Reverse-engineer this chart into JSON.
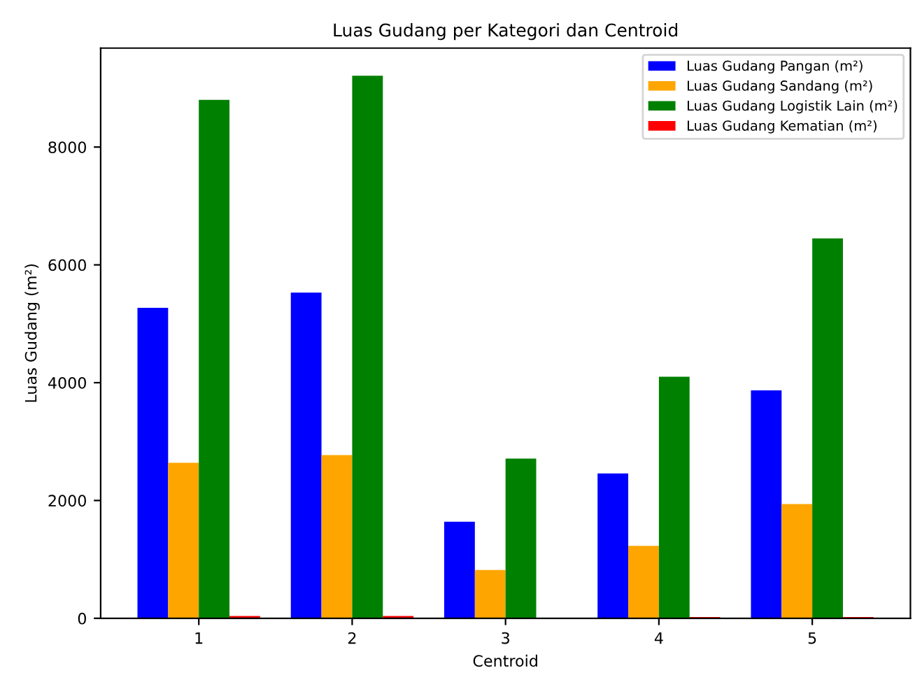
{
  "chart_data": {
    "type": "bar",
    "title": "Luas Gudang per Kategori dan Centroid",
    "xlabel": "Centroid",
    "ylabel": "Luas Gudang (m²)",
    "categories": [
      "1",
      "2",
      "3",
      "4",
      "5"
    ],
    "series": [
      {
        "name": "Luas Gudang Pangan (m²)",
        "color": "#0000ff",
        "values": [
          5270,
          5530,
          1640,
          2460,
          3870
        ]
      },
      {
        "name": "Luas Gudang Sandang (m²)",
        "color": "#ffa500",
        "values": [
          2640,
          2770,
          820,
          1230,
          1940
        ]
      },
      {
        "name": "Luas Gudang Logistik Lain (m²)",
        "color": "#008000",
        "values": [
          8800,
          9210,
          2710,
          4100,
          6450
        ]
      },
      {
        "name": "Luas Gudang Kematian (m²)",
        "color": "#ff0000",
        "values": [
          40,
          40,
          0,
          20,
          20
        ]
      }
    ],
    "ylim": [
      0,
      9680
    ],
    "yticks": [
      0,
      2000,
      4000,
      6000,
      8000
    ],
    "grid": false,
    "legend": "top right"
  }
}
